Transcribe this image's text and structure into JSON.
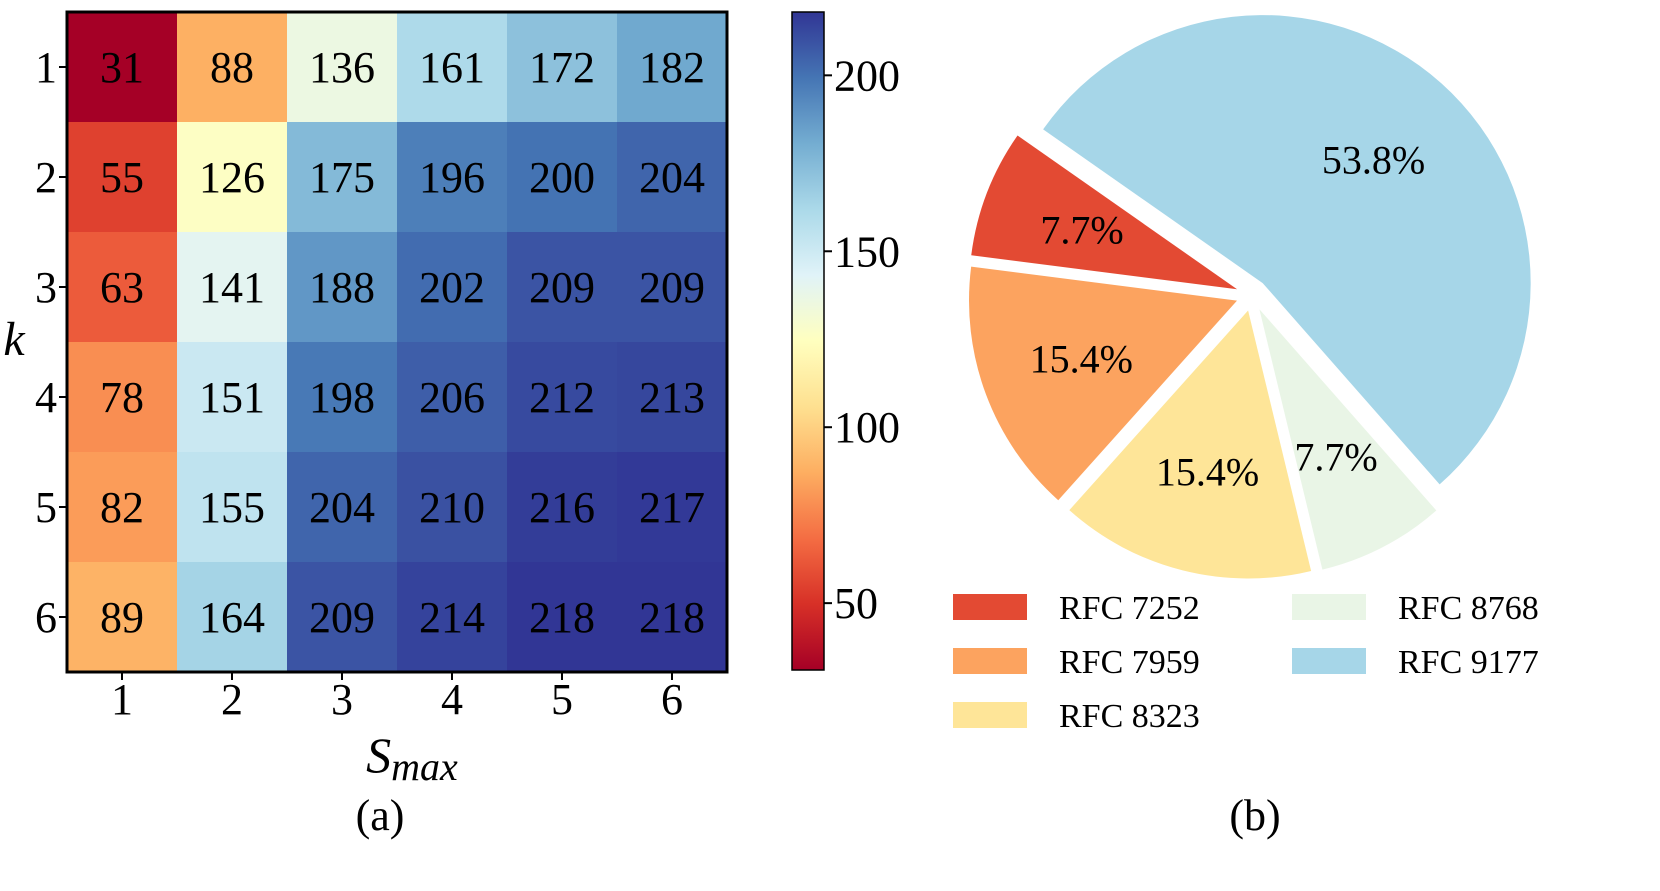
{
  "chart_data": [
    {
      "type": "heatmap",
      "subtitle": "(a)",
      "xlabel": "S",
      "xlabel_sub": "max",
      "ylabel": "k",
      "x_categories": [
        "1",
        "2",
        "3",
        "4",
        "5",
        "6"
      ],
      "y_categories": [
        "1",
        "2",
        "3",
        "4",
        "5",
        "6"
      ],
      "values": [
        [
          31,
          88,
          136,
          161,
          172,
          182
        ],
        [
          55,
          126,
          175,
          196,
          200,
          204
        ],
        [
          63,
          141,
          188,
          202,
          209,
          209
        ],
        [
          78,
          151,
          198,
          206,
          212,
          213
        ],
        [
          82,
          155,
          204,
          210,
          216,
          217
        ],
        [
          89,
          164,
          209,
          214,
          218,
          218
        ]
      ],
      "colorbar": {
        "range": [
          31,
          218
        ],
        "ticks": [
          "50",
          "100",
          "150",
          "200"
        ],
        "colormap": [
          "#a50026",
          "#d73027",
          "#f46d43",
          "#fdae61",
          "#fee090",
          "#ffffbf",
          "#e0f3f8",
          "#abd9e9",
          "#74add1",
          "#4575b4",
          "#313695"
        ]
      }
    },
    {
      "type": "pie",
      "subtitle": "(b)",
      "slices": [
        {
          "name": "RFC 7252",
          "value": 7.7,
          "label": "7.7%",
          "color": "#e34a33"
        },
        {
          "name": "RFC 7959",
          "value": 15.4,
          "label": "15.4%",
          "color": "#fca35f"
        },
        {
          "name": "RFC 8323",
          "value": 15.4,
          "label": "15.4%",
          "color": "#fee598"
        },
        {
          "name": "RFC 8768",
          "value": 7.7,
          "label": "7.7%",
          "color": "#e9f5e6"
        },
        {
          "name": "RFC 9177",
          "value": 53.8,
          "label": "53.8%",
          "color": "#a6d6e8"
        }
      ],
      "legend": [
        "RFC 7252",
        "RFC 8768",
        "RFC 7959",
        "RFC 9177",
        "RFC 8323"
      ],
      "legend_placement": "bottom"
    }
  ]
}
